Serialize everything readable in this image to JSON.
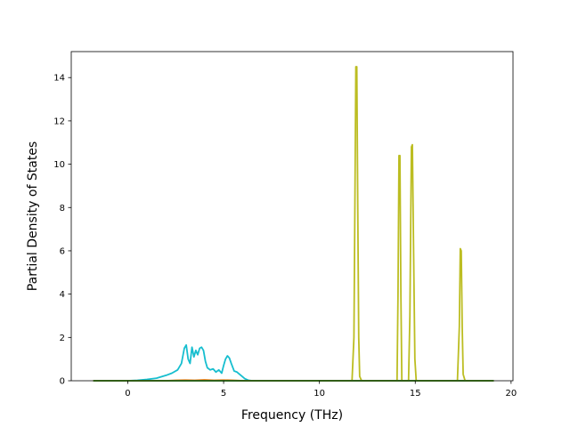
{
  "chart_data": {
    "type": "line",
    "title": "",
    "xlabel": "Frequency (THz)",
    "ylabel": "Partial Density of States",
    "xlim": [
      -2.95,
      20.1
    ],
    "ylim": [
      0,
      15.2
    ],
    "xticks": [
      0,
      5,
      10,
      15,
      20
    ],
    "yticks": [
      0,
      2,
      4,
      6,
      8,
      10,
      12,
      14
    ],
    "grid": false,
    "legend": "none",
    "series": [
      {
        "color": "#17becf",
        "x": [
          -1.8,
          0.0,
          0.5,
          1.0,
          1.5,
          2.0,
          2.3,
          2.6,
          2.8,
          2.95,
          3.05,
          3.15,
          3.25,
          3.35,
          3.45,
          3.55,
          3.65,
          3.75,
          3.85,
          3.95,
          4.05,
          4.15,
          4.3,
          4.45,
          4.6,
          4.75,
          4.9,
          5.0,
          5.1,
          5.2,
          5.3,
          5.4,
          5.55,
          5.7,
          5.9,
          6.1,
          6.3,
          6.5,
          19.1
        ],
        "y": [
          0.0,
          0.0,
          0.02,
          0.06,
          0.12,
          0.25,
          0.35,
          0.5,
          0.8,
          1.5,
          1.65,
          1.0,
          0.8,
          1.55,
          1.1,
          1.4,
          1.2,
          1.5,
          1.55,
          1.4,
          0.9,
          0.6,
          0.5,
          0.55,
          0.4,
          0.5,
          0.35,
          0.7,
          1.0,
          1.15,
          1.05,
          0.8,
          0.45,
          0.4,
          0.25,
          0.1,
          0.02,
          0.0,
          0.0
        ]
      },
      {
        "color": "#bcbd22",
        "x": [
          -1.8,
          11.7,
          11.8,
          11.85,
          11.9,
          11.95,
          12.0,
          12.05,
          12.1,
          12.2,
          14.05,
          14.1,
          14.15,
          14.2,
          14.25,
          14.3,
          14.65,
          14.72,
          14.8,
          14.85,
          14.9,
          14.98,
          15.05,
          17.2,
          17.3,
          17.35,
          17.4,
          17.45,
          17.5,
          17.6,
          19.1
        ],
        "y": [
          0.0,
          0.0,
          2.0,
          8.0,
          14.5,
          14.5,
          8.0,
          2.0,
          0.2,
          0.0,
          0.0,
          4.0,
          10.4,
          10.4,
          4.0,
          0.0,
          0.0,
          3.0,
          10.8,
          10.9,
          7.0,
          1.0,
          0.0,
          0.0,
          2.5,
          6.1,
          6.0,
          2.5,
          0.3,
          0.0,
          0.0
        ]
      },
      {
        "color": "#ff7f0e",
        "x": [
          -1.8,
          2.0,
          2.5,
          3.0,
          3.5,
          4.0,
          4.5,
          5.0,
          5.5,
          6.0,
          19.1
        ],
        "y": [
          0.0,
          0.0,
          0.02,
          0.03,
          0.02,
          0.04,
          0.02,
          0.03,
          0.02,
          0.0,
          0.0
        ]
      },
      {
        "color": "#2ca02c",
        "x": [
          -1.8,
          19.1
        ],
        "y": [
          0.0,
          0.0
        ]
      }
    ]
  }
}
